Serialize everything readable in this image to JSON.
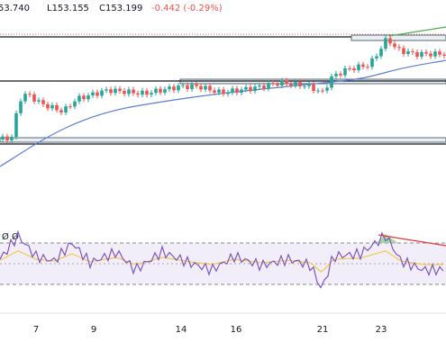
{
  "header": {
    "high": "53.740",
    "low": "L153.155",
    "close": "C153.199",
    "change": "-0.442 (-0.29%)"
  },
  "rsi_label": "Ø Ø",
  "x_axis": {
    "labels": [
      "7",
      "9",
      "14",
      "16",
      "21",
      "23"
    ]
  }
}
